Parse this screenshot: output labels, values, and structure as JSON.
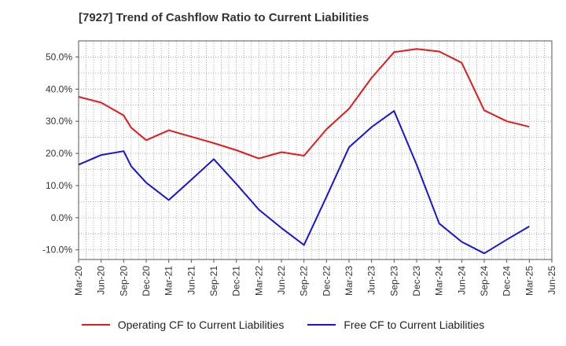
{
  "chart_data": {
    "type": "line",
    "title": "[7927]  Trend of Cashflow Ratio to Current Liabilities",
    "x_tick_labels": [
      "Mar-20",
      "Jun-20",
      "Sep-20",
      "Dec-20",
      "Mar-21",
      "Jun-21",
      "Sep-21",
      "Dec-21",
      "Mar-22",
      "Jun-22",
      "Sep-22",
      "Dec-22",
      "Mar-23",
      "Jun-23",
      "Sep-23",
      "Dec-23",
      "Mar-24",
      "Jun-24",
      "Sep-24",
      "Dec-24",
      "Mar-25",
      "Jun-25"
    ],
    "y_tick_labels": [
      "-10.0%",
      "0.0%",
      "10.0%",
      "20.0%",
      "30.0%",
      "40.0%",
      "50.0%"
    ],
    "y_ticks": [
      -10,
      0,
      10,
      20,
      30,
      40,
      50
    ],
    "ylim": [
      -13,
      55
    ],
    "grid": true,
    "legend_position": "bottom",
    "series": [
      {
        "name": "Operating CF to Current Liabilities",
        "color": "#e31a1c",
        "x": [
          "Mar-20",
          "Jun-20",
          "Sep-20",
          "Oct-20",
          "Dec-20",
          "Mar-21",
          "Jun-21",
          "Sep-21",
          "Dec-21",
          "Mar-22",
          "Jun-22",
          "Sep-22",
          "Dec-22",
          "Mar-23",
          "Jun-23",
          "Sep-23",
          "Dec-23",
          "Mar-24",
          "Jun-24",
          "Sep-24",
          "Dec-24",
          "Mar-25"
        ],
        "values": [
          37.6,
          35.8,
          31.8,
          28.0,
          24.1,
          27.2,
          25.2,
          23.2,
          21.0,
          18.4,
          20.4,
          19.3,
          27.5,
          33.9,
          43.5,
          51.5,
          52.5,
          51.7,
          48.2,
          33.4,
          30.0,
          28.3
        ]
      },
      {
        "name": "Free CF to Current Liabilities",
        "color": "#1515d8",
        "x": [
          "Mar-20",
          "Jun-20",
          "Sep-20",
          "Oct-20",
          "Dec-20",
          "Mar-21",
          "Jun-21",
          "Sep-21",
          "Dec-21",
          "Mar-22",
          "Jun-22",
          "Sep-22",
          "Dec-22",
          "Mar-23",
          "Jun-23",
          "Sep-23",
          "Dec-23",
          "Mar-24",
          "Jun-24",
          "Sep-24",
          "Dec-24",
          "Mar-25"
        ],
        "values": [
          16.5,
          19.5,
          20.7,
          16.0,
          10.9,
          5.5,
          11.8,
          18.2,
          10.5,
          2.5,
          -3.2,
          -8.5,
          6.5,
          21.9,
          28.2,
          33.2,
          16.5,
          -1.8,
          -7.5,
          -11.1,
          -6.8,
          -2.7
        ]
      }
    ]
  }
}
